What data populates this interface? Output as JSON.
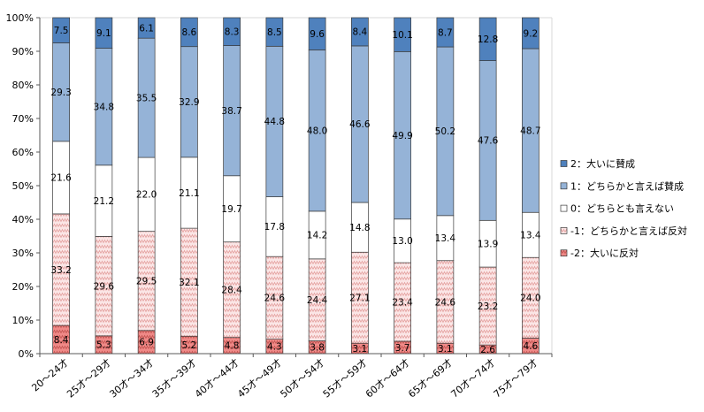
{
  "chart_data": {
    "type": "bar",
    "stacked": true,
    "percent_stacked": true,
    "categories": [
      "20～24才",
      "25才～29才",
      "30才～34才",
      "35才～39才",
      "40才～44才",
      "45才～49才",
      "50才～54才",
      "55才～59才",
      "60才～64才",
      "65才～69才",
      "70才～74才",
      "75才～79才"
    ],
    "series": [
      {
        "name": "2：大いに賛成",
        "color": "#4F81BD",
        "fill": "solid",
        "values": [
          7.5,
          9.1,
          6.1,
          8.6,
          8.3,
          8.5,
          9.6,
          8.4,
          10.1,
          8.7,
          12.8,
          9.2
        ]
      },
      {
        "name": "1：どちらかと言えば賛成",
        "color": "#95B3D7",
        "fill": "solid",
        "values": [
          29.3,
          34.8,
          35.5,
          32.9,
          38.7,
          44.8,
          48.0,
          46.6,
          49.9,
          50.2,
          47.6,
          48.7
        ]
      },
      {
        "name": "0：どちらとも言えない",
        "color": "#FFFFFF",
        "fill": "solid",
        "values": [
          21.6,
          21.2,
          22.0,
          21.1,
          19.7,
          17.8,
          14.2,
          14.8,
          13.0,
          13.4,
          13.9,
          13.4
        ]
      },
      {
        "name": "-1：どちらかと言えば反対",
        "color": "#FBE6E6",
        "fill": "pattern",
        "pattern_color": "#E39D9B",
        "values": [
          33.2,
          29.6,
          29.5,
          32.1,
          28.4,
          24.6,
          24.4,
          27.1,
          23.4,
          24.6,
          23.2,
          24.0
        ]
      },
      {
        "name": "-2：大いに反対",
        "color": "#F08A88",
        "fill": "pattern",
        "pattern_color": "#C0504D",
        "values": [
          8.4,
          5.3,
          6.9,
          5.2,
          4.8,
          4.3,
          3.8,
          3.1,
          3.7,
          3.1,
          2.6,
          4.6
        ]
      }
    ],
    "y_ticks": [
      "0%",
      "10%",
      "20%",
      "30%",
      "40%",
      "50%",
      "60%",
      "70%",
      "80%",
      "90%",
      "100%"
    ],
    "ylim": [
      0,
      100
    ],
    "grid": false,
    "legend": "right",
    "axis_color": "#595959",
    "segment_outline_color": "#3A3A3A"
  }
}
